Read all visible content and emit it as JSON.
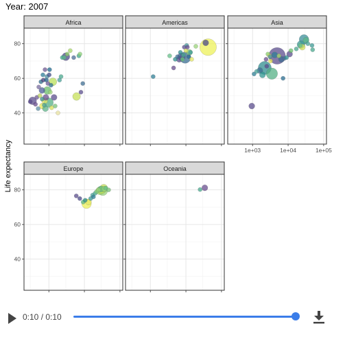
{
  "player": {
    "time_label": "0:10 / 0:10",
    "progress": 1.0,
    "accent_color": "#3b7de9",
    "play_icon": "play-icon",
    "download_icon": "download-icon"
  },
  "chart_data": {
    "type": "scatter",
    "title": "Year: 2007",
    "xlabel": "",
    "ylabel": "Life expectancy",
    "x_scale": "log",
    "xlim": [
      200,
      120000
    ],
    "ylim": [
      22,
      89
    ],
    "x_ticks": [
      1000,
      10000,
      100000
    ],
    "x_tick_labels": [
      "1e+03",
      "1e+04",
      "1e+05"
    ],
    "y_ticks": [
      40,
      60,
      80
    ],
    "y_tick_labels": [
      "40",
      "60",
      "80"
    ],
    "grid": true,
    "legend": "none",
    "panels": [
      {
        "name": "Africa",
        "points": [
          {
            "x": 300,
            "y": 46.5,
            "size": 1,
            "color": "#5b4e8d"
          },
          {
            "x": 350,
            "y": 47,
            "size": 3,
            "color": "#5b4e8d"
          },
          {
            "x": 420,
            "y": 45,
            "size": 1,
            "color": "#6a4f8f"
          },
          {
            "x": 460,
            "y": 49,
            "size": 1,
            "color": "#6d5a96"
          },
          {
            "x": 500,
            "y": 42.5,
            "size": 1,
            "color": "#5f8fa6"
          },
          {
            "x": 520,
            "y": 55,
            "size": 1,
            "color": "#7a6ca0"
          },
          {
            "x": 560,
            "y": 50,
            "size": 1,
            "color": "#b9d15f"
          },
          {
            "x": 600,
            "y": 58,
            "size": 1,
            "color": "#2f6f8f"
          },
          {
            "x": 640,
            "y": 53,
            "size": 2,
            "color": "#4d5f99"
          },
          {
            "x": 650,
            "y": 48,
            "size": 1,
            "color": "#3e8d8d"
          },
          {
            "x": 660,
            "y": 44,
            "size": 2,
            "color": "#e8e656"
          },
          {
            "x": 680,
            "y": 62,
            "size": 1,
            "color": "#2e7f9a"
          },
          {
            "x": 700,
            "y": 59,
            "size": 1,
            "color": "#463c7a"
          },
          {
            "x": 740,
            "y": 44.5,
            "size": 1,
            "color": "#4aa39a"
          },
          {
            "x": 760,
            "y": 47,
            "size": 2,
            "color": "#e3e566"
          },
          {
            "x": 780,
            "y": 65,
            "size": 1,
            "color": "#6f5a94"
          },
          {
            "x": 800,
            "y": 42.5,
            "size": 2,
            "color": "#5fb38a"
          },
          {
            "x": 820,
            "y": 49,
            "size": 2,
            "color": "#6a4f8f"
          },
          {
            "x": 850,
            "y": 59,
            "size": 1,
            "color": "#1f5f88"
          },
          {
            "x": 880,
            "y": 61,
            "size": 1,
            "color": "#4c8fa3"
          },
          {
            "x": 900,
            "y": 53,
            "size": 3,
            "color": "#6bbf6b"
          },
          {
            "x": 940,
            "y": 57,
            "size": 1,
            "color": "#6e5b97"
          },
          {
            "x": 980,
            "y": 46,
            "size": 4,
            "color": "#55b085"
          },
          {
            "x": 1020,
            "y": 62,
            "size": 1,
            "color": "#3d4f8a"
          },
          {
            "x": 1050,
            "y": 65,
            "size": 1,
            "color": "#1f6a8f"
          },
          {
            "x": 1100,
            "y": 52,
            "size": 1,
            "color": "#9cd37a"
          },
          {
            "x": 1150,
            "y": 56,
            "size": 1,
            "color": "#2b6e91"
          },
          {
            "x": 1200,
            "y": 43,
            "size": 1,
            "color": "#d9e05a"
          },
          {
            "x": 1300,
            "y": 58,
            "size": 3,
            "color": "#b8e05a"
          },
          {
            "x": 1400,
            "y": 49,
            "size": 2,
            "color": "#5b4e8d"
          },
          {
            "x": 1500,
            "y": 44,
            "size": 1,
            "color": "#78c27a"
          },
          {
            "x": 1800,
            "y": 40,
            "size": 1,
            "color": "#e8e2a0"
          },
          {
            "x": 2000,
            "y": 59,
            "size": 1,
            "color": "#4aa39a"
          },
          {
            "x": 2200,
            "y": 61,
            "size": 1,
            "color": "#49a88f"
          },
          {
            "x": 2400,
            "y": 72,
            "size": 1,
            "color": "#3da78f"
          },
          {
            "x": 2700,
            "y": 72,
            "size": 1,
            "color": "#5fb78a"
          },
          {
            "x": 3000,
            "y": 72.5,
            "size": 3,
            "color": "#4b4a8a"
          },
          {
            "x": 3300,
            "y": 74,
            "size": 1,
            "color": "#8fcf6a"
          },
          {
            "x": 4000,
            "y": 76,
            "size": 1,
            "color": "#a8d86a"
          },
          {
            "x": 5000,
            "y": 72,
            "size": 1,
            "color": "#4e6f9a"
          },
          {
            "x": 6000,
            "y": 49.5,
            "size": 3,
            "color": "#c7e05a"
          },
          {
            "x": 7000,
            "y": 73,
            "size": 1,
            "color": "#46a892"
          },
          {
            "x": 7500,
            "y": 74,
            "size": 1,
            "color": "#8cd17a"
          },
          {
            "x": 8000,
            "y": 52,
            "size": 1,
            "color": "#5b4e8d"
          },
          {
            "x": 9000,
            "y": 57,
            "size": 1,
            "color": "#3f6d93"
          }
        ]
      },
      {
        "name": "Americas",
        "points": [
          {
            "x": 1200,
            "y": 61,
            "size": 1,
            "color": "#2f7f95"
          },
          {
            "x": 3500,
            "y": 73,
            "size": 1,
            "color": "#66c08a"
          },
          {
            "x": 4500,
            "y": 66,
            "size": 1,
            "color": "#6a4f8f"
          },
          {
            "x": 5000,
            "y": 71,
            "size": 1,
            "color": "#2f8f8f"
          },
          {
            "x": 5800,
            "y": 72.5,
            "size": 1,
            "color": "#3f6d93"
          },
          {
            "x": 6500,
            "y": 71,
            "size": 2,
            "color": "#5b4e8d"
          },
          {
            "x": 7000,
            "y": 75,
            "size": 1,
            "color": "#2e8f90"
          },
          {
            "x": 7500,
            "y": 72.5,
            "size": 3,
            "color": "#4c5a95"
          },
          {
            "x": 8000,
            "y": 71,
            "size": 1,
            "color": "#69c37a"
          },
          {
            "x": 8500,
            "y": 73.5,
            "size": 1,
            "color": "#49a88f"
          },
          {
            "x": 9000,
            "y": 78,
            "size": 1,
            "color": "#5b4e8d"
          },
          {
            "x": 9500,
            "y": 72,
            "size": 5,
            "color": "#3b6f94"
          },
          {
            "x": 10000,
            "y": 76,
            "size": 1,
            "color": "#d4e05a"
          },
          {
            "x": 10500,
            "y": 79,
            "size": 1,
            "color": "#4a9fa0"
          },
          {
            "x": 11000,
            "y": 78,
            "size": 1,
            "color": "#6a4f8f"
          },
          {
            "x": 12000,
            "y": 72.5,
            "size": 1,
            "color": "#2f6b91"
          },
          {
            "x": 12500,
            "y": 75,
            "size": 2,
            "color": "#7fc97a"
          },
          {
            "x": 13500,
            "y": 75,
            "size": 1,
            "color": "#3c9b98"
          },
          {
            "x": 14500,
            "y": 71,
            "size": 1,
            "color": "#e3e566"
          },
          {
            "x": 19000,
            "y": 78.5,
            "size": 1,
            "color": "#9ad37a"
          },
          {
            "x": 36000,
            "y": 80.5,
            "size": 2,
            "color": "#4b4a8a"
          },
          {
            "x": 42000,
            "y": 78,
            "size": 8,
            "color": "#eef15a"
          }
        ]
      },
      {
        "name": "Asia",
        "points": [
          {
            "x": 950,
            "y": 44,
            "size": 2,
            "color": "#5b4e8d"
          },
          {
            "x": 1100,
            "y": 62.5,
            "size": 1,
            "color": "#2f7f95"
          },
          {
            "x": 1300,
            "y": 64,
            "size": 1,
            "color": "#4aa39a"
          },
          {
            "x": 1600,
            "y": 64.5,
            "size": 2,
            "color": "#3f6d93"
          },
          {
            "x": 1900,
            "y": 62,
            "size": 2,
            "color": "#2f9690"
          },
          {
            "x": 2200,
            "y": 66,
            "size": 6,
            "color": "#2f8c8f"
          },
          {
            "x": 2400,
            "y": 71,
            "size": 1,
            "color": "#6a4f8f"
          },
          {
            "x": 2500,
            "y": 67,
            "size": 1,
            "color": "#5b4e8d"
          },
          {
            "x": 2700,
            "y": 74,
            "size": 1,
            "color": "#8acf6a"
          },
          {
            "x": 3000,
            "y": 73,
            "size": 1,
            "color": "#e0e35a"
          },
          {
            "x": 3100,
            "y": 72.5,
            "size": 1,
            "color": "#4c8fa3"
          },
          {
            "x": 3200,
            "y": 70,
            "size": 1,
            "color": "#e8e656"
          },
          {
            "x": 3500,
            "y": 62.7,
            "size": 5,
            "color": "#55b085"
          },
          {
            "x": 4200,
            "y": 73.5,
            "size": 2,
            "color": "#2f7f95"
          },
          {
            "x": 4900,
            "y": 73,
            "size": 8,
            "color": "#5b4e8d"
          },
          {
            "x": 5500,
            "y": 73,
            "size": 1,
            "color": "#a5d76a"
          },
          {
            "x": 6500,
            "y": 71,
            "size": 2,
            "color": "#3f6d93"
          },
          {
            "x": 7200,
            "y": 60,
            "size": 1,
            "color": "#2b6e91"
          },
          {
            "x": 7800,
            "y": 71.5,
            "size": 1,
            "color": "#4e6f9a"
          },
          {
            "x": 9000,
            "y": 72,
            "size": 1,
            "color": "#2e8f90"
          },
          {
            "x": 11000,
            "y": 74,
            "size": 2,
            "color": "#5b4e8d"
          },
          {
            "x": 12000,
            "y": 76,
            "size": 1,
            "color": "#6bbf6b"
          },
          {
            "x": 17000,
            "y": 77,
            "size": 1,
            "color": "#49a88f"
          },
          {
            "x": 22000,
            "y": 79,
            "size": 1,
            "color": "#66c08a"
          },
          {
            "x": 23000,
            "y": 79.5,
            "size": 3,
            "color": "#3d9b95"
          },
          {
            "x": 25000,
            "y": 78,
            "size": 2,
            "color": "#d4e05a"
          },
          {
            "x": 28000,
            "y": 82.5,
            "size": 4,
            "color": "#3b8f99"
          },
          {
            "x": 32000,
            "y": 82,
            "size": 2,
            "color": "#5cb788"
          },
          {
            "x": 36000,
            "y": 80,
            "size": 1,
            "color": "#4aa39a"
          },
          {
            "x": 47000,
            "y": 79,
            "size": 1,
            "color": "#3d9b95"
          },
          {
            "x": 49000,
            "y": 76.5,
            "size": 1,
            "color": "#49a88f"
          }
        ]
      },
      {
        "name": "Europe",
        "points": [
          {
            "x": 5900,
            "y": 76.5,
            "size": 1,
            "color": "#5b4e8d"
          },
          {
            "x": 7400,
            "y": 75,
            "size": 1,
            "color": "#4b4a8a"
          },
          {
            "x": 9200,
            "y": 73,
            "size": 1,
            "color": "#5cb788"
          },
          {
            "x": 10500,
            "y": 74,
            "size": 1,
            "color": "#2e8f90"
          },
          {
            "x": 11500,
            "y": 72,
            "size": 4,
            "color": "#eef15a"
          },
          {
            "x": 13000,
            "y": 73,
            "size": 2,
            "color": "#e3e566"
          },
          {
            "x": 15000,
            "y": 75,
            "size": 1,
            "color": "#3d9b95"
          },
          {
            "x": 17000,
            "y": 77,
            "size": 1,
            "color": "#4aa39a"
          },
          {
            "x": 18000,
            "y": 76,
            "size": 1,
            "color": "#2f7f95"
          },
          {
            "x": 20000,
            "y": 78,
            "size": 1,
            "color": "#46a892"
          },
          {
            "x": 22000,
            "y": 79,
            "size": 1,
            "color": "#7fc97a"
          },
          {
            "x": 25000,
            "y": 80,
            "size": 1,
            "color": "#99d37a"
          },
          {
            "x": 27000,
            "y": 79.5,
            "size": 3,
            "color": "#a8d86a"
          },
          {
            "x": 29000,
            "y": 80.5,
            "size": 2,
            "color": "#5cb788"
          },
          {
            "x": 31000,
            "y": 80,
            "size": 3,
            "color": "#b8e05a"
          },
          {
            "x": 33000,
            "y": 79.5,
            "size": 4,
            "color": "#9ad37a"
          },
          {
            "x": 35000,
            "y": 81,
            "size": 3,
            "color": "#c7e05a"
          },
          {
            "x": 37000,
            "y": 80.5,
            "size": 2,
            "color": "#8cd17a"
          },
          {
            "x": 40000,
            "y": 81,
            "size": 1,
            "color": "#66c08a"
          },
          {
            "x": 48000,
            "y": 80,
            "size": 1,
            "color": "#78c27a"
          }
        ]
      },
      {
        "name": "Oceania",
        "points": [
          {
            "x": 25000,
            "y": 80.2,
            "size": 1,
            "color": "#49a88f"
          },
          {
            "x": 34000,
            "y": 81.2,
            "size": 2,
            "color": "#6a4f8f"
          }
        ]
      }
    ]
  }
}
